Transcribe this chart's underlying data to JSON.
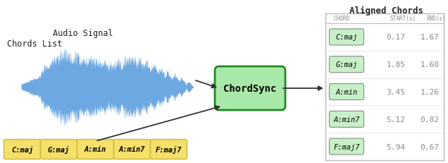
{
  "audio_label": "Audio Signal",
  "chords_list_label": "Chords List",
  "aligned_label": "Aligned Chords",
  "chordsync_label": "ChordSync",
  "table_headers": [
    "CHORD",
    "START(s)",
    "END(s)"
  ],
  "chords": [
    "C:maj",
    "G:maj",
    "A:min",
    "A:min7",
    "F:maj7"
  ],
  "starts": [
    0.17,
    1.85,
    3.45,
    5.12,
    5.94
  ],
  "ends": [
    1.67,
    1.6,
    1.26,
    0.82,
    0.67
  ],
  "chord_box_color_bottom": "#f5e06a",
  "chord_box_edge_bottom": "#c8b840",
  "chord_box_color_top": "#c8f0c8",
  "chord_box_edge_top": "#888888",
  "chordsync_box_color": "#a8e8a8",
  "chordsync_box_edge": "#228822",
  "table_line_color": "#bbbbbb",
  "text_color_dark": "#222222",
  "text_color_gray": "#888888",
  "waveform_color": "#5599dd",
  "background_color": "#ffffff",
  "arrow_color": "#333333"
}
